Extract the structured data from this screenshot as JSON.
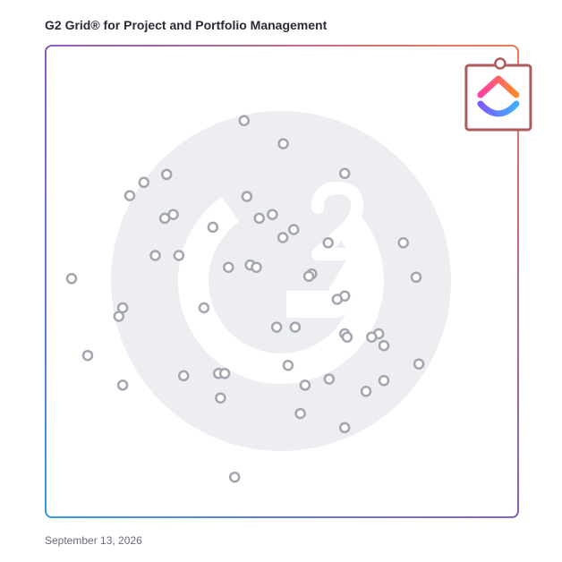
{
  "header": {
    "title": "G2 Grid® for Project and Portfolio Management"
  },
  "footer": {
    "date": "September 13, 2026"
  },
  "chart_data": {
    "type": "scatter",
    "title": "G2 Grid® for Project and Portfolio Management",
    "xlim": [
      0,
      100
    ],
    "ylim": [
      0,
      100
    ],
    "grid": "quadrants",
    "colors": {
      "point": "#a3a5b0",
      "highlight": "#b05a5c",
      "frame_start": "#1e90d8",
      "frame_mid": "#7b4ab8",
      "frame_end": "#ee6a3a",
      "watermark": "#eceef1"
    },
    "highlight": {
      "name": "ClickUp",
      "x": 96.2,
      "y": 96.2,
      "icon": "clickup-logo-icon"
    },
    "points": [
      {
        "x": 42.0,
        "y": 84.1
      },
      {
        "x": 50.3,
        "y": 79.2
      },
      {
        "x": 63.3,
        "y": 72.9
      },
      {
        "x": 25.6,
        "y": 72.7
      },
      {
        "x": 20.8,
        "y": 71.0
      },
      {
        "x": 17.8,
        "y": 68.2
      },
      {
        "x": 42.6,
        "y": 68.0
      },
      {
        "x": 27.0,
        "y": 64.2
      },
      {
        "x": 48.0,
        "y": 64.2
      },
      {
        "x": 25.2,
        "y": 63.4
      },
      {
        "x": 45.2,
        "y": 63.4
      },
      {
        "x": 35.4,
        "y": 61.5
      },
      {
        "x": 52.5,
        "y": 61.0
      },
      {
        "x": 50.2,
        "y": 59.3
      },
      {
        "x": 59.8,
        "y": 58.2
      },
      {
        "x": 75.7,
        "y": 58.2
      },
      {
        "x": 23.2,
        "y": 55.5
      },
      {
        "x": 28.2,
        "y": 55.5
      },
      {
        "x": 43.3,
        "y": 53.5
      },
      {
        "x": 38.7,
        "y": 53.0
      },
      {
        "x": 44.6,
        "y": 53.0
      },
      {
        "x": 56.3,
        "y": 51.6
      },
      {
        "x": 55.7,
        "y": 51.1
      },
      {
        "x": 78.4,
        "y": 50.9
      },
      {
        "x": 5.5,
        "y": 50.6
      },
      {
        "x": 63.3,
        "y": 46.9
      },
      {
        "x": 61.7,
        "y": 46.2
      },
      {
        "x": 16.3,
        "y": 44.4
      },
      {
        "x": 33.5,
        "y": 44.4
      },
      {
        "x": 15.5,
        "y": 42.6
      },
      {
        "x": 48.9,
        "y": 40.3
      },
      {
        "x": 52.8,
        "y": 40.3
      },
      {
        "x": 63.3,
        "y": 38.9
      },
      {
        "x": 63.8,
        "y": 38.2
      },
      {
        "x": 70.5,
        "y": 38.9
      },
      {
        "x": 69.0,
        "y": 38.2
      },
      {
        "x": 71.6,
        "y": 36.4
      },
      {
        "x": 8.9,
        "y": 34.3
      },
      {
        "x": 79.0,
        "y": 32.5
      },
      {
        "x": 51.3,
        "y": 32.2
      },
      {
        "x": 36.6,
        "y": 30.5
      },
      {
        "x": 37.9,
        "y": 30.5
      },
      {
        "x": 29.2,
        "y": 30.0
      },
      {
        "x": 60.0,
        "y": 29.3
      },
      {
        "x": 71.6,
        "y": 29.0
      },
      {
        "x": 16.3,
        "y": 28.0
      },
      {
        "x": 54.9,
        "y": 28.0
      },
      {
        "x": 67.8,
        "y": 26.7
      },
      {
        "x": 37.0,
        "y": 25.3
      },
      {
        "x": 53.9,
        "y": 22.0
      },
      {
        "x": 63.3,
        "y": 19.0
      },
      {
        "x": 40.0,
        "y": 8.5
      }
    ]
  }
}
